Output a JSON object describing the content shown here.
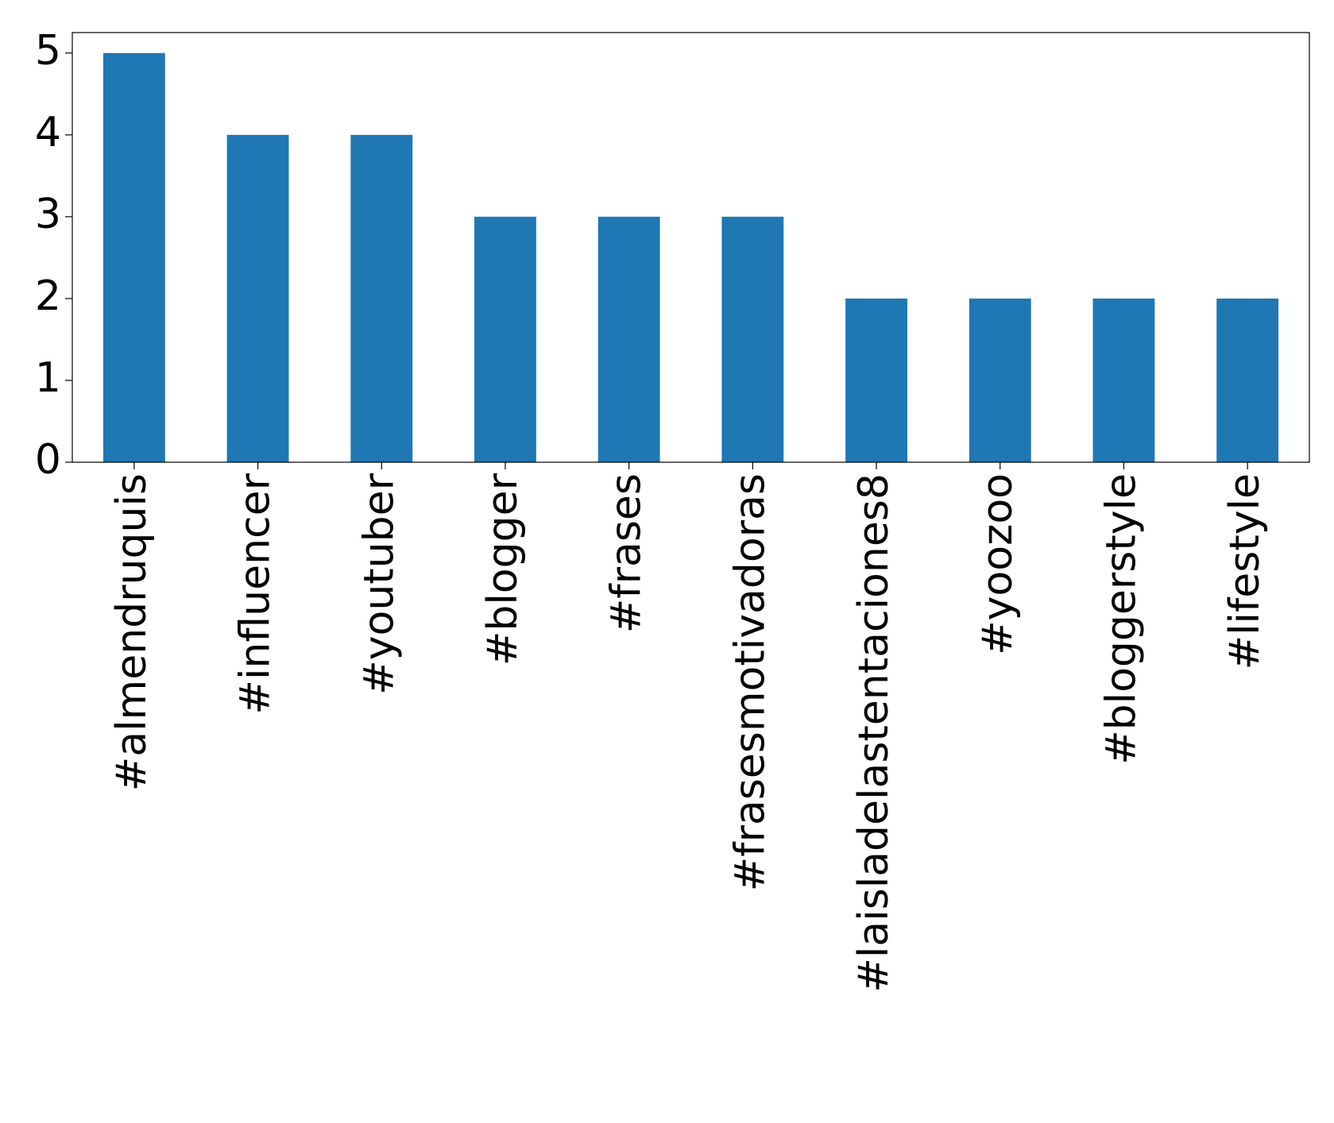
{
  "chart_data": {
    "type": "bar",
    "categories": [
      "#almendruquis",
      "#influencer",
      "#youtuber",
      "#blogger",
      "#frases",
      "#frasesmotivadoras",
      "#laisladelastentaciones8",
      "#yoozoo",
      "#bloggerstyle",
      "#lifestyle"
    ],
    "values": [
      5,
      4,
      4,
      3,
      3,
      3,
      2,
      2,
      2,
      2
    ],
    "color": "#1f77b4",
    "ylim": [
      0,
      5.25
    ],
    "yticks": [
      0,
      1,
      2,
      3,
      4,
      5
    ],
    "grid": false
  }
}
